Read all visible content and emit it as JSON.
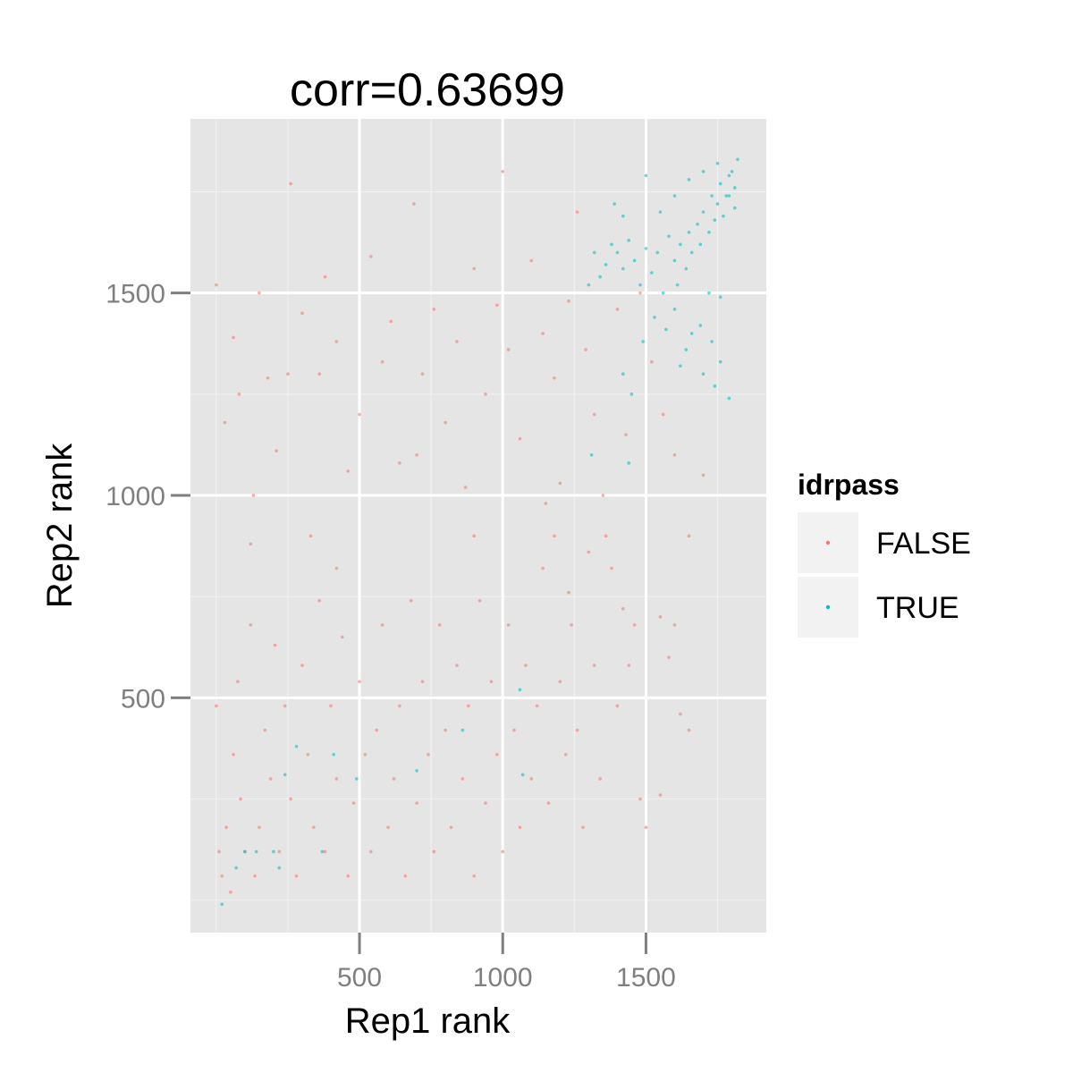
{
  "chart_data": {
    "type": "scatter",
    "title": "corr=0.63699",
    "xlabel": "Rep1 rank",
    "ylabel": "Rep2 rank",
    "xlim": [
      -90,
      1920
    ],
    "ylim": [
      -80,
      1930
    ],
    "x_major_ticks": [
      500,
      1000,
      1500
    ],
    "y_major_ticks": [
      500,
      1000,
      1500
    ],
    "x_tick_labels": [
      "500",
      "1000",
      "1500"
    ],
    "y_tick_labels": [
      "500",
      "1000",
      "1500"
    ],
    "x_minor_gridlines": [
      0,
      250,
      750,
      1250,
      1750
    ],
    "y_minor_gridlines": [
      0,
      250,
      750,
      1250,
      1750
    ],
    "grid": true,
    "panel_background": "#e5e5e5",
    "legend": {
      "title": "idrpass",
      "position": "right",
      "entries": [
        {
          "label": "FALSE",
          "color": "#f8766d"
        },
        {
          "label": "TRUE",
          "color": "#00bfc4"
        }
      ]
    },
    "series": [
      {
        "name": "FALSE",
        "color": "#f8766d",
        "points": [
          [
            0,
            480
          ],
          [
            10,
            120
          ],
          [
            20,
            60
          ],
          [
            35,
            180
          ],
          [
            50,
            20
          ],
          [
            60,
            360
          ],
          [
            75,
            540
          ],
          [
            85,
            250
          ],
          [
            100,
            120
          ],
          [
            120,
            680
          ],
          [
            135,
            60
          ],
          [
            150,
            180
          ],
          [
            170,
            420
          ],
          [
            190,
            300
          ],
          [
            205,
            630
          ],
          [
            220,
            120
          ],
          [
            240,
            480
          ],
          [
            260,
            250
          ],
          [
            280,
            60
          ],
          [
            300,
            580
          ],
          [
            320,
            360
          ],
          [
            340,
            180
          ],
          [
            360,
            740
          ],
          [
            380,
            120
          ],
          [
            400,
            480
          ],
          [
            420,
            300
          ],
          [
            440,
            650
          ],
          [
            460,
            60
          ],
          [
            480,
            240
          ],
          [
            500,
            540
          ],
          [
            520,
            360
          ],
          [
            540,
            120
          ],
          [
            560,
            420
          ],
          [
            580,
            680
          ],
          [
            600,
            180
          ],
          [
            620,
            300
          ],
          [
            640,
            480
          ],
          [
            660,
            60
          ],
          [
            680,
            740
          ],
          [
            700,
            240
          ],
          [
            720,
            540
          ],
          [
            740,
            360
          ],
          [
            760,
            120
          ],
          [
            780,
            680
          ],
          [
            800,
            420
          ],
          [
            820,
            180
          ],
          [
            840,
            580
          ],
          [
            860,
            300
          ],
          [
            880,
            480
          ],
          [
            900,
            60
          ],
          [
            920,
            740
          ],
          [
            940,
            240
          ],
          [
            960,
            540
          ],
          [
            980,
            360
          ],
          [
            1000,
            120
          ],
          [
            1020,
            680
          ],
          [
            1040,
            420
          ],
          [
            1060,
            180
          ],
          [
            1080,
            580
          ],
          [
            1100,
            300
          ],
          [
            1120,
            480
          ],
          [
            1140,
            820
          ],
          [
            1160,
            240
          ],
          [
            1180,
            900
          ],
          [
            1200,
            540
          ],
          [
            1220,
            360
          ],
          [
            1240,
            680
          ],
          [
            1260,
            420
          ],
          [
            1280,
            180
          ],
          [
            1300,
            860
          ],
          [
            1320,
            580
          ],
          [
            1340,
            300
          ],
          [
            1360,
            900
          ],
          [
            1380,
            820
          ],
          [
            1400,
            480
          ],
          [
            1420,
            720
          ],
          [
            1440,
            580
          ],
          [
            1460,
            680
          ],
          [
            1480,
            250
          ],
          [
            1500,
            180
          ],
          [
            1550,
            260
          ],
          [
            1600,
            680
          ],
          [
            1650,
            420
          ],
          [
            0,
            1520
          ],
          [
            30,
            1180
          ],
          [
            60,
            1390
          ],
          [
            80,
            1250
          ],
          [
            130,
            1000
          ],
          [
            150,
            1500
          ],
          [
            180,
            1290
          ],
          [
            210,
            1110
          ],
          [
            260,
            1770
          ],
          [
            300,
            1450
          ],
          [
            330,
            900
          ],
          [
            360,
            1300
          ],
          [
            380,
            1540
          ],
          [
            420,
            1380
          ],
          [
            460,
            1060
          ],
          [
            500,
            1200
          ],
          [
            540,
            1590
          ],
          [
            580,
            1330
          ],
          [
            610,
            1430
          ],
          [
            640,
            1080
          ],
          [
            690,
            1720
          ],
          [
            720,
            1300
          ],
          [
            760,
            1460
          ],
          [
            800,
            1180
          ],
          [
            840,
            1380
          ],
          [
            870,
            1020
          ],
          [
            900,
            1560
          ],
          [
            940,
            1250
          ],
          [
            980,
            1470
          ],
          [
            1020,
            1360
          ],
          [
            1060,
            1140
          ],
          [
            1100,
            1580
          ],
          [
            1140,
            1400
          ],
          [
            1180,
            1290
          ],
          [
            1200,
            1030
          ],
          [
            1230,
            1480
          ],
          [
            1260,
            1700
          ],
          [
            1290,
            1360
          ],
          [
            1320,
            1200
          ],
          [
            1350,
            1000
          ],
          [
            1400,
            1460
          ],
          [
            1430,
            1150
          ],
          [
            1480,
            1500
          ],
          [
            1520,
            1330
          ],
          [
            1560,
            1200
          ],
          [
            1600,
            1100
          ],
          [
            1650,
            900
          ],
          [
            1700,
            1050
          ],
          [
            1550,
            700
          ],
          [
            1580,
            600
          ],
          [
            1620,
            460
          ],
          [
            1000,
            1800
          ],
          [
            700,
            1100
          ],
          [
            900,
            900
          ],
          [
            420,
            820
          ],
          [
            250,
            1300
          ],
          [
            120,
            880
          ],
          [
            1150,
            980
          ],
          [
            1230,
            760
          ]
        ]
      },
      {
        "name": "TRUE",
        "color": "#00bfc4",
        "points": [
          [
            1820,
            1830
          ],
          [
            1800,
            1800
          ],
          [
            1810,
            1760
          ],
          [
            1790,
            1790
          ],
          [
            1780,
            1740
          ],
          [
            1760,
            1770
          ],
          [
            1750,
            1720
          ],
          [
            1770,
            1690
          ],
          [
            1740,
            1680
          ],
          [
            1730,
            1740
          ],
          [
            1720,
            1650
          ],
          [
            1700,
            1700
          ],
          [
            1690,
            1620
          ],
          [
            1680,
            1670
          ],
          [
            1660,
            1600
          ],
          [
            1650,
            1650
          ],
          [
            1640,
            1560
          ],
          [
            1620,
            1620
          ],
          [
            1610,
            1520
          ],
          [
            1600,
            1580
          ],
          [
            1580,
            1640
          ],
          [
            1560,
            1500
          ],
          [
            1540,
            1600
          ],
          [
            1520,
            1550
          ],
          [
            1500,
            1610
          ],
          [
            1480,
            1520
          ],
          [
            1460,
            1580
          ],
          [
            1440,
            1630
          ],
          [
            1420,
            1560
          ],
          [
            1400,
            1600
          ],
          [
            1380,
            1620
          ],
          [
            1360,
            1570
          ],
          [
            1340,
            1540
          ],
          [
            1320,
            1600
          ],
          [
            1300,
            1520
          ],
          [
            1390,
            1720
          ],
          [
            1420,
            1690
          ],
          [
            1500,
            1790
          ],
          [
            1550,
            1700
          ],
          [
            1600,
            1740
          ],
          [
            1650,
            1780
          ],
          [
            1700,
            1800
          ],
          [
            1750,
            1820
          ],
          [
            1790,
            1740
          ],
          [
            1810,
            1710
          ],
          [
            1760,
            1490
          ],
          [
            1720,
            1500
          ],
          [
            1690,
            1420
          ],
          [
            1660,
            1400
          ],
          [
            1640,
            1360
          ],
          [
            1620,
            1320
          ],
          [
            1700,
            1300
          ],
          [
            1730,
            1380
          ],
          [
            1760,
            1330
          ],
          [
            1740,
            1270
          ],
          [
            1790,
            1240
          ],
          [
            1600,
            1460
          ],
          [
            1570,
            1410
          ],
          [
            1530,
            1440
          ],
          [
            1490,
            1380
          ],
          [
            1450,
            1250
          ],
          [
            1420,
            1300
          ],
          [
            1440,
            1080
          ],
          [
            1310,
            1100
          ],
          [
            1060,
            520
          ],
          [
            860,
            420
          ],
          [
            700,
            320
          ],
          [
            490,
            300
          ],
          [
            410,
            360
          ],
          [
            280,
            380
          ],
          [
            240,
            310
          ],
          [
            200,
            120
          ],
          [
            140,
            120
          ],
          [
            100,
            120
          ],
          [
            70,
            80
          ],
          [
            20,
            -10
          ],
          [
            370,
            120
          ],
          [
            220,
            80
          ],
          [
            1070,
            310
          ]
        ]
      }
    ]
  }
}
